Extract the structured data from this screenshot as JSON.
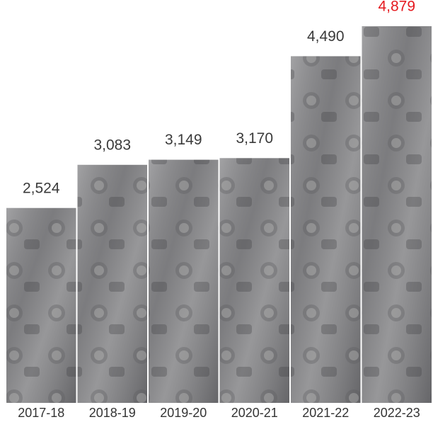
{
  "chart_data": {
    "type": "bar",
    "categories": [
      "2017-18",
      "2018-19",
      "2019-20",
      "2020-21",
      "2021-22",
      "2022-23"
    ],
    "values": [
      2524,
      3083,
      3149,
      3170,
      4490,
      4879
    ],
    "color": "#8c8c8e",
    "value_label_color": "#3a3a3a",
    "highlight": {
      "category": "2022-23",
      "color": "#e5191f"
    }
  }
}
